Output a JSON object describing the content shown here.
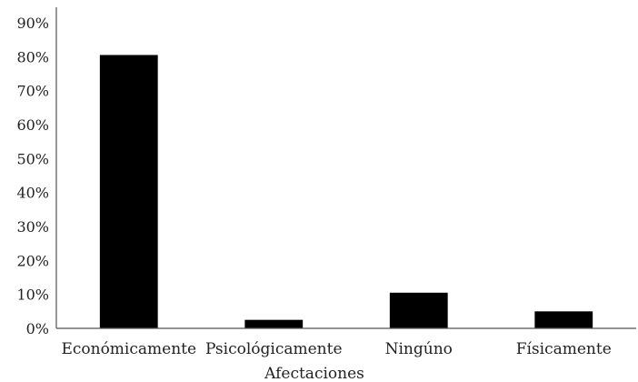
{
  "chart_data": {
    "type": "bar",
    "categories": [
      "Económicamente",
      "Psicológicamente",
      "Ningúno",
      "Físicamente"
    ],
    "values": [
      80.5,
      2.5,
      10.5,
      5
    ],
    "xlabel": "Afectaciones",
    "ylabel": "",
    "ylim": [
      0,
      90
    ],
    "y_ticks": [
      "0%",
      "10%",
      "20%",
      "30%",
      "40%",
      "50%",
      "60%",
      "70%",
      "80%",
      "90%"
    ],
    "grid": false,
    "legend": "none",
    "bar_color": "#000000",
    "axis_color": "#555555"
  }
}
